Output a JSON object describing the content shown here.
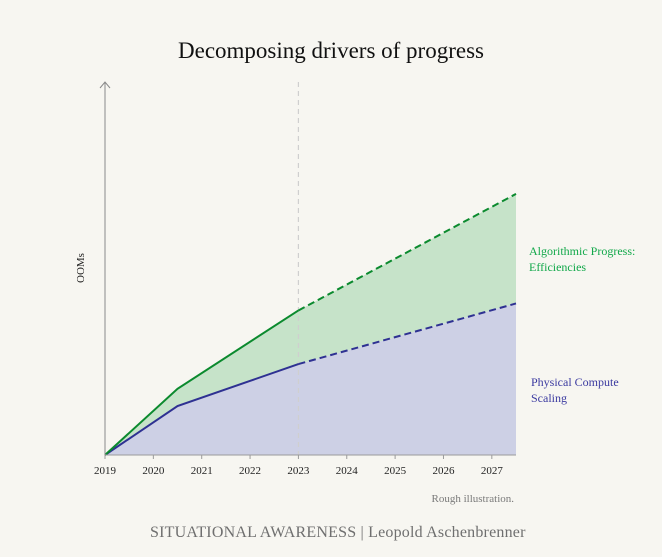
{
  "chart_data": {
    "type": "area",
    "title": "Decomposing drivers of progress",
    "ylabel": "OOMs",
    "xlabel": "",
    "x_ticks": [
      "2019",
      "2020",
      "2021",
      "2022",
      "2023",
      "2024",
      "2025",
      "2026",
      "2027"
    ],
    "xlim": [
      2019,
      2027.5
    ],
    "ylim": [
      0,
      8
    ],
    "projection_start": 2023,
    "series": [
      {
        "name": "Physical Compute Scaling",
        "color": "#2e3192",
        "fill": "#cdd0e5",
        "x": [
          2019,
          2020.5,
          2023,
          2027.5
        ],
        "y": [
          0,
          1.05,
          1.95,
          3.25
        ]
      },
      {
        "name": "Algorithmic Progress: Efficiencies",
        "color": "#0b8a2e",
        "fill": "#c6e3c9",
        "x": [
          2019,
          2020.5,
          2023,
          2027.5
        ],
        "y": [
          0,
          1.42,
          3.1,
          5.6
        ]
      }
    ],
    "grid": false,
    "annotations": [
      "Rough illustration."
    ]
  },
  "footer_text": "SITUATIONAL AWARENESS | Leopold Aschenbrenner"
}
